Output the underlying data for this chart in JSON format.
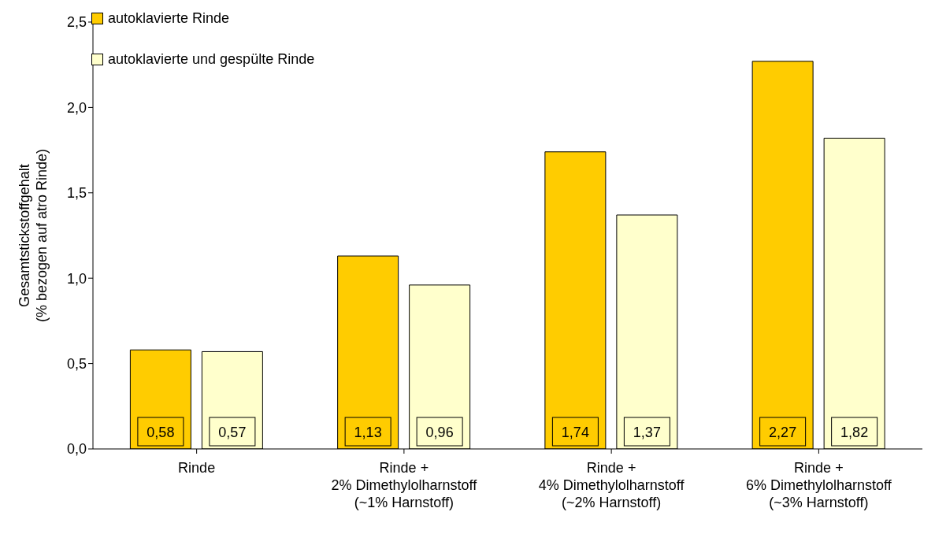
{
  "chart_data": {
    "type": "bar",
    "ylabel": "Gesamtstickstoffgehalt\n(% bezogen auf atro Rinde)",
    "categories": [
      "Rinde",
      "Rinde +\n2% Dimethylolharnstoff\n(~1% Harnstoff)",
      "Rinde +\n4% Dimethylolharnstoff\n(~2% Harnstoff)",
      "Rinde +\n6% Dimethylolharnstoff\n(~3% Harnstoff)"
    ],
    "series": [
      {
        "name": "autoklavierte Rinde",
        "color": "#ffcc00",
        "values": [
          0.58,
          1.13,
          1.74,
          2.27
        ],
        "value_labels": [
          "0,58",
          "1,13",
          "1,74",
          "2,27"
        ]
      },
      {
        "name": "autoklavierte und gespülte Rinde",
        "color": "#ffffcc",
        "values": [
          0.57,
          0.96,
          1.37,
          1.82
        ],
        "value_labels": [
          "0,57",
          "0,96",
          "1,37",
          "1,82"
        ]
      }
    ],
    "ylim": [
      0,
      2.5
    ],
    "yticks": [
      {
        "value": 0,
        "label": "0,0"
      },
      {
        "value": 0.5,
        "label": "0,5"
      },
      {
        "value": 1,
        "label": "1,0"
      },
      {
        "value": 1.5,
        "label": "1,5"
      },
      {
        "value": 2,
        "label": "2,0"
      },
      {
        "value": 2.5,
        "label": "2,5"
      }
    ],
    "grid": false,
    "legend": "top left"
  }
}
